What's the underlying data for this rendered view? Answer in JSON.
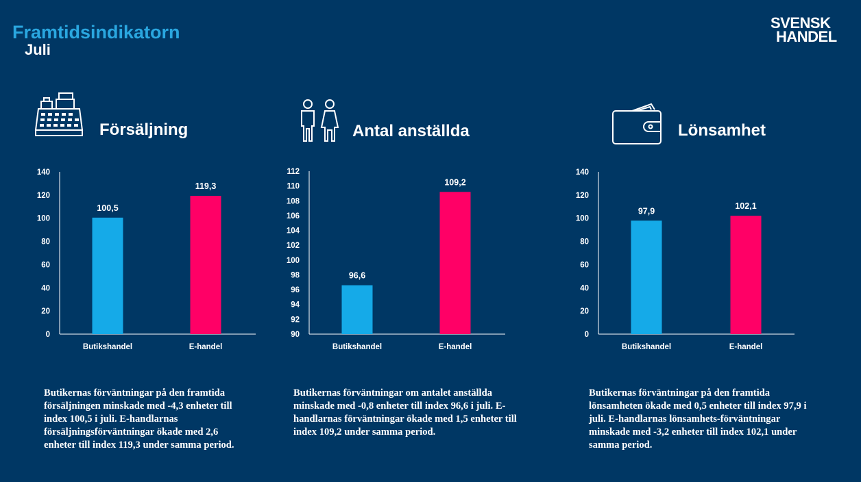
{
  "header": {
    "title": "Framtidsindikatorn",
    "subtitle": "Juli",
    "logo_line1": "SVENSK",
    "logo_line2": "HANDEL"
  },
  "colors": {
    "background": "#003764",
    "title": "#2aa7e0",
    "butikshandel": "#15aae8",
    "ehandel": "#ff0066"
  },
  "sections": [
    {
      "icon": "cash-register-icon",
      "title": "Försäljning",
      "description": "Butikernas förväntningar på den framtida försäljningen minskade med -4,3 enheter till index 100,5 i juli. E-handlarnas försäljningsförväntningar ökade med 2,6 enheter till index 119,3 under samma period."
    },
    {
      "icon": "people-icon",
      "title": "Antal anställda",
      "description": "Butikernas förväntningar om antalet anställda minskade med -0,8 enheter till index 96,6 i juli. E-handlarnas förväntningar ökade med 1,5 enheter till index 109,2 under samma period."
    },
    {
      "icon": "wallet-icon",
      "title": "Lönsamhet",
      "description": "Butikernas förväntningar på den framtida lönsamheten ökade med 0,5 enheter till index 97,9 i juli. E-handlarnas lönsamhets-förväntningar minskade med -3,2 enheter till index 102,1 under samma period."
    }
  ],
  "chart_data": [
    {
      "type": "bar",
      "categories": [
        "Butikshandel",
        "E-handel"
      ],
      "values": [
        100.5,
        119.3
      ],
      "labels": [
        "100,5",
        "119,3"
      ],
      "ylim": [
        0,
        140
      ],
      "yticks": [
        0,
        20,
        40,
        60,
        80,
        100,
        120,
        140
      ],
      "grid": false
    },
    {
      "type": "bar",
      "categories": [
        "Butikshandel",
        "E-handel"
      ],
      "values": [
        96.6,
        109.2
      ],
      "labels": [
        "96,6",
        "109,2"
      ],
      "ylim": [
        90,
        112
      ],
      "yticks": [
        90,
        92,
        94,
        96,
        98,
        100,
        102,
        104,
        106,
        108,
        110,
        112
      ],
      "grid": false
    },
    {
      "type": "bar",
      "categories": [
        "Butikshandel",
        "E-handel"
      ],
      "values": [
        97.9,
        102.1
      ],
      "labels": [
        "97,9",
        "102,1"
      ],
      "ylim": [
        0,
        140
      ],
      "yticks": [
        0,
        20,
        40,
        60,
        80,
        100,
        120,
        140
      ],
      "grid": false
    }
  ]
}
